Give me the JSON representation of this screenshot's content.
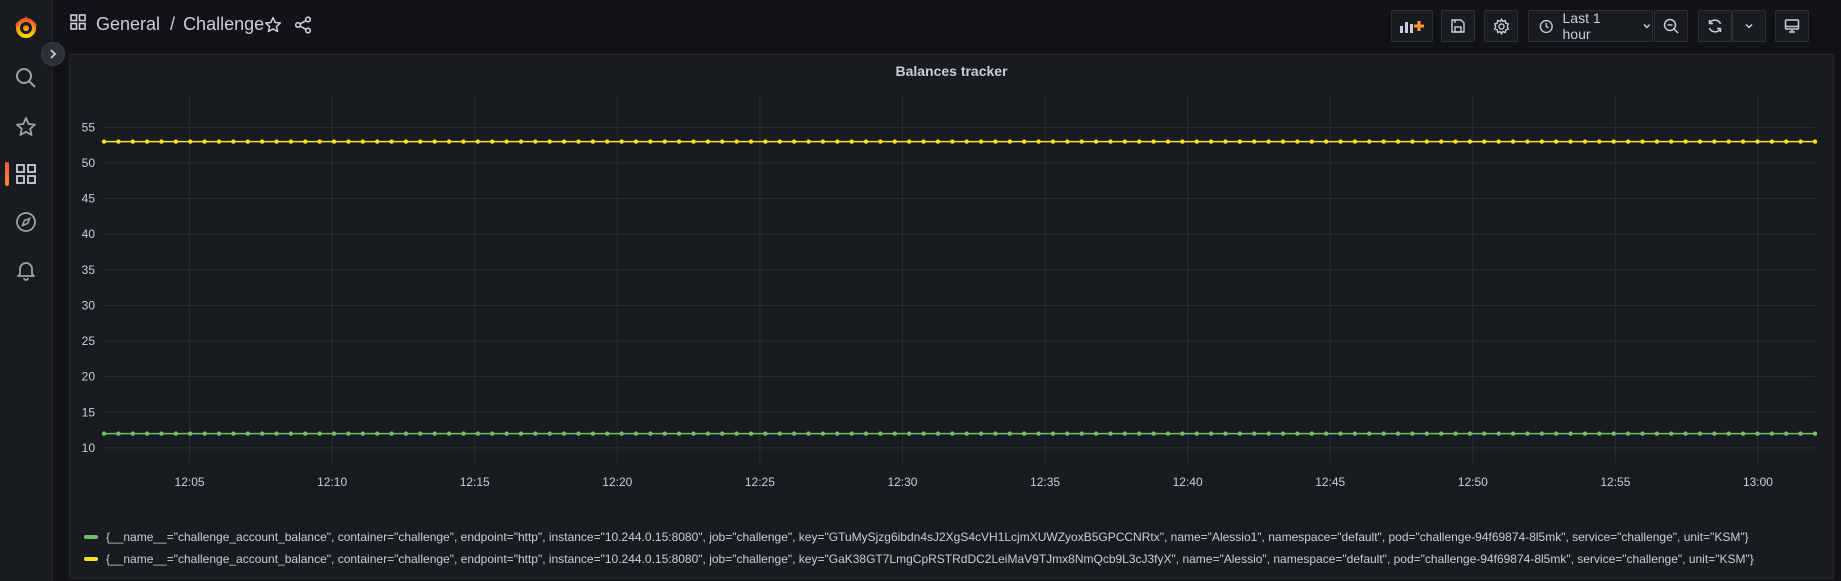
{
  "breadcrumb": {
    "folder": "General",
    "separator": "/",
    "dashboard": "Challenge"
  },
  "toolbar": {
    "time_range_label": "Last 1 hour"
  },
  "panel": {
    "title": "Balances tracker"
  },
  "colors": {
    "series_green": "#73bf69",
    "series_yellow": "#fade2a",
    "grid": "#2a2d33",
    "accent": "#ff8833"
  },
  "icons": {
    "logo": "grafana-logo-icon",
    "search": "search-icon",
    "starred": "star-icon",
    "dashboards": "dashboards-icon",
    "explore": "compass-icon",
    "alerting": "bell-icon"
  },
  "chart_data": {
    "type": "line",
    "title": "Balances tracker",
    "xlabel": "",
    "ylabel": "",
    "x_range": [
      "12:02",
      "13:02"
    ],
    "x_ticks": [
      "12:05",
      "12:10",
      "12:15",
      "12:20",
      "12:25",
      "12:30",
      "12:35",
      "12:40",
      "12:45",
      "12:50",
      "12:55",
      "13:00"
    ],
    "y_ticks": [
      10,
      15,
      20,
      25,
      30,
      35,
      40,
      45,
      50,
      55
    ],
    "ylim": [
      9,
      58
    ],
    "points_per_series": 120,
    "grid": true,
    "legend_position": "bottom",
    "series": [
      {
        "name": "{__name__=\"challenge_account_balance\", container=\"challenge\", endpoint=\"http\", instance=\"10.244.0.15:8080\", job=\"challenge\", key=\"GTuMySjzg6ibdn4sJ2XgS4cVH1LcjmXUWZyoxB5GPCCNRtx\", name=\"Alessio1\", namespace=\"default\", pod=\"challenge-94f69874-8l5mk\", service=\"challenge\", unit=\"KSM\"}",
        "color": "#73bf69",
        "value": 12
      },
      {
        "name": "{__name__=\"challenge_account_balance\", container=\"challenge\", endpoint=\"http\", instance=\"10.244.0.15:8080\", job=\"challenge\", key=\"GaK38GT7LmgCpRSTRdDC2LeiMaV9TJmx8NmQcb9L3cJ3fyX\", name=\"Alessio\", namespace=\"default\", pod=\"challenge-94f69874-8l5mk\", service=\"challenge\", unit=\"KSM\"}",
        "color": "#fade2a",
        "value": 53
      }
    ]
  }
}
